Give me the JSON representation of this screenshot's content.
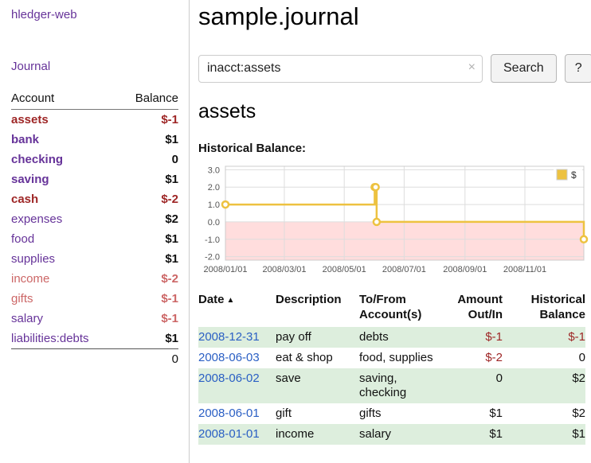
{
  "app_title": "hledger-web",
  "sidebar": {
    "journal_link": "Journal",
    "accounts": {
      "header_account": "Account",
      "header_balance": "Balance",
      "rows": [
        {
          "label": "assets",
          "indent": 0,
          "bold": true,
          "color": "neg",
          "balance": "$-1",
          "balance_color": "neg"
        },
        {
          "label": "bank",
          "indent": 1,
          "bold": true,
          "color": "link",
          "balance": "$1",
          "balance_color": "normal"
        },
        {
          "label": "checking",
          "indent": 2,
          "bold": true,
          "color": "link",
          "balance": "0",
          "balance_color": "normal"
        },
        {
          "label": "saving",
          "indent": 2,
          "bold": true,
          "color": "link",
          "balance": "$1",
          "balance_color": "normal"
        },
        {
          "label": "cash",
          "indent": 1,
          "bold": true,
          "color": "neg",
          "balance": "$-2",
          "balance_color": "neg"
        },
        {
          "label": "expenses",
          "indent": 0,
          "bold": false,
          "color": "link",
          "balance": "$2",
          "balance_color": "normal"
        },
        {
          "label": "food",
          "indent": 1,
          "bold": false,
          "color": "link",
          "balance": "$1",
          "balance_color": "normal"
        },
        {
          "label": "supplies",
          "indent": 1,
          "bold": false,
          "color": "link",
          "balance": "$1",
          "balance_color": "normal"
        },
        {
          "label": "income",
          "indent": 0,
          "bold": false,
          "color": "neglight",
          "balance": "$-2",
          "balance_color": "neglight"
        },
        {
          "label": "gifts",
          "indent": 1,
          "bold": false,
          "color": "neglight",
          "balance": "$-1",
          "balance_color": "neglight"
        },
        {
          "label": "salary",
          "indent": 1,
          "bold": false,
          "color": "link",
          "balance": "$-1",
          "balance_color": "neglight"
        },
        {
          "label": "liabilities:debts",
          "indent": 0,
          "bold": false,
          "color": "link",
          "balance": "$1",
          "balance_color": "normal"
        }
      ],
      "total": "0"
    }
  },
  "header": {
    "title": "sample.journal"
  },
  "search": {
    "value": "inacct:assets",
    "clear_icon": "×",
    "search_button": "Search",
    "help_button": "?"
  },
  "account_page": {
    "heading": "assets",
    "chart_title": "Historical Balance:"
  },
  "chart_data": {
    "type": "line",
    "step": true,
    "title": "Historical Balance:",
    "x_range": [
      "2008-01-01",
      "2008-12-31"
    ],
    "x_ticks": [
      {
        "date": "2008-01-01",
        "label": "2008/01/01"
      },
      {
        "date": "2008-03-01",
        "label": "2008/03/01"
      },
      {
        "date": "2008-05-01",
        "label": "2008/05/01"
      },
      {
        "date": "2008-07-01",
        "label": "2008/07/01"
      },
      {
        "date": "2008-09-01",
        "label": "2008/09/01"
      },
      {
        "date": "2008-11-01",
        "label": "2008/11/01"
      }
    ],
    "y_ticks": [
      "3.0",
      "2.0",
      "1.0",
      "0.0",
      "-1.0",
      "-2.0"
    ],
    "ylim": [
      -2.2,
      3.2
    ],
    "series": [
      {
        "name": "$",
        "color": "#edc240",
        "points": [
          {
            "date": "2008-01-01",
            "value": 1
          },
          {
            "date": "2008-06-01",
            "value": 2
          },
          {
            "date": "2008-06-02",
            "value": 2
          },
          {
            "date": "2008-06-03",
            "value": 0
          },
          {
            "date": "2008-12-31",
            "value": -1
          }
        ]
      }
    ],
    "legend_position": "top-right",
    "legend": [
      "$"
    ],
    "grid": true,
    "grid_color": "#dddddd",
    "negative_fill": "#ffdddd"
  },
  "register": {
    "headers": {
      "date": "Date",
      "sort_icon": "▲",
      "description": "Description",
      "accounts": "To/From Account(s)",
      "amount": "Amount Out/In",
      "balance": "Historical Balance"
    },
    "rows": [
      {
        "date": "2008-12-31",
        "description": "pay off",
        "accounts": "debts",
        "amount": "$-1",
        "amount_neg": true,
        "balance": "$-1",
        "balance_neg": true,
        "highlight": true
      },
      {
        "date": "2008-06-03",
        "description": "eat & shop",
        "accounts": "food, supplies",
        "amount": "$-2",
        "amount_neg": true,
        "balance": "0",
        "balance_neg": false,
        "highlight": false
      },
      {
        "date": "2008-06-02",
        "description": "save",
        "accounts": "saving, checking",
        "amount": "0",
        "amount_neg": false,
        "balance": "$2",
        "balance_neg": false,
        "highlight": true
      },
      {
        "date": "2008-06-01",
        "description": "gift",
        "accounts": "gifts",
        "amount": "$1",
        "amount_neg": false,
        "balance": "$2",
        "balance_neg": false,
        "highlight": false
      },
      {
        "date": "2008-01-01",
        "description": "income",
        "accounts": "salary",
        "amount": "$1",
        "amount_neg": false,
        "balance": "$1",
        "balance_neg": false,
        "highlight": true
      }
    ]
  },
  "colors": {
    "link_purple": "#663399",
    "link_blue": "#2a5fc4",
    "negative_strong": "#9e2626",
    "negative_light": "#cc6666",
    "row_highlight": "#ddeedd",
    "chart_line": "#edc240"
  }
}
